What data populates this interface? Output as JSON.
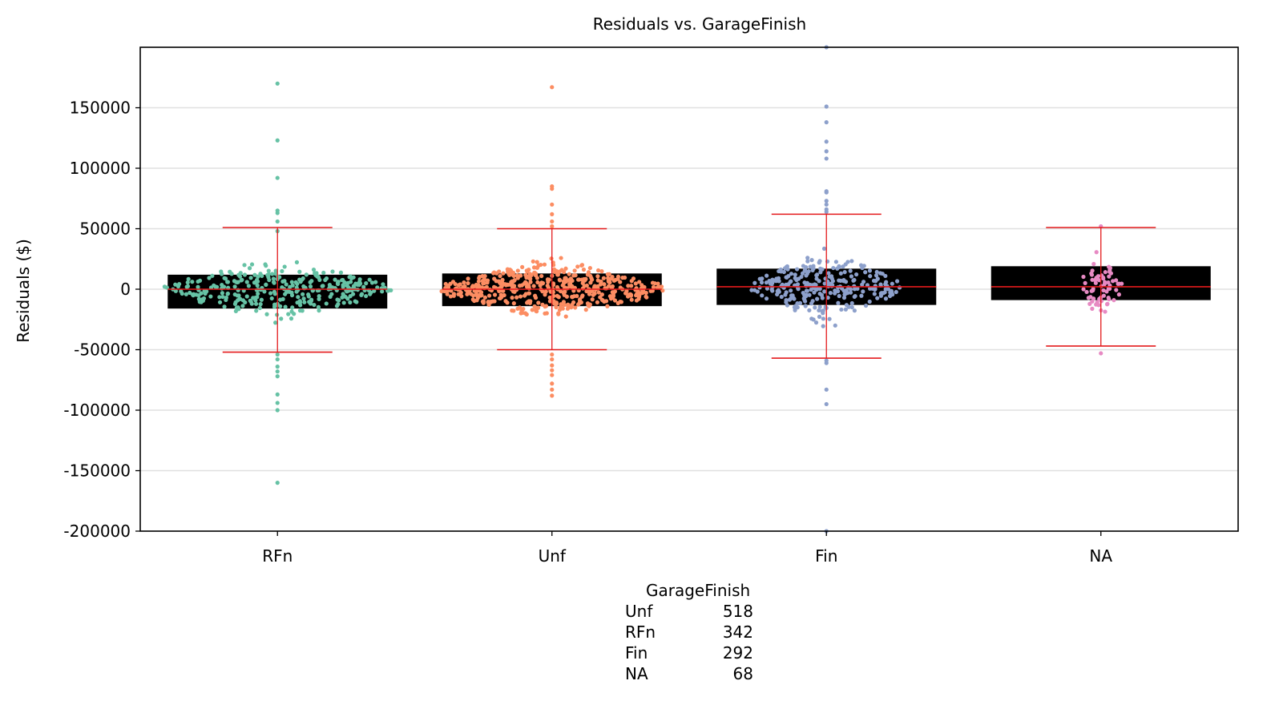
{
  "chart_data": {
    "type": "swarm-box",
    "title": "Residuals vs. GarageFinish",
    "xlabel": "",
    "ylabel": "Residuals ($)",
    "categories": [
      "RFn",
      "Unf",
      "Fin",
      "NA"
    ],
    "ylim": [
      -200000,
      200000
    ],
    "yticks": [
      150000,
      100000,
      50000,
      0,
      -50000,
      -100000,
      -150000,
      -200000
    ],
    "ytick_labels": [
      "150000",
      "100000",
      "50000",
      "0",
      "-50000",
      "-100000",
      "-150000",
      "-200000"
    ],
    "grid": true,
    "boxes": [
      {
        "category": "RFn",
        "q1": -16000,
        "median": 0,
        "q3": 12000,
        "whisker_low": -52000,
        "whisker_high": 51000,
        "color": "#66c2a5"
      },
      {
        "category": "Unf",
        "q1": -14000,
        "median": 0,
        "q3": 13000,
        "whisker_low": -50000,
        "whisker_high": 50000,
        "color": "#fc8d62"
      },
      {
        "category": "Fin",
        "q1": -13000,
        "median": 2000,
        "q3": 17000,
        "whisker_low": -57000,
        "whisker_high": 62000,
        "color": "#8da0cb"
      },
      {
        "category": "NA",
        "q1": -9000,
        "median": 2000,
        "q3": 19000,
        "whisker_low": -47000,
        "whisker_high": 51000,
        "color": "#e78ac3"
      }
    ],
    "outliers": [
      {
        "category": "RFn",
        "values": [
          170000,
          123000,
          92000,
          65000,
          63000,
          56000,
          48000,
          -54000,
          -58000,
          -64000,
          -68000,
          -72000,
          -87000,
          -94000,
          -100000,
          -160000
        ]
      },
      {
        "category": "Unf",
        "values": [
          167000,
          85000,
          83000,
          70000,
          62000,
          56000,
          52000,
          -54000,
          -58000,
          -63000,
          -67000,
          -71000,
          -78000,
          -83000,
          -88000
        ]
      },
      {
        "category": "Fin",
        "values": [
          200000,
          151000,
          138000,
          122000,
          114000,
          108000,
          81000,
          80000,
          73000,
          70000,
          66000,
          64000,
          -59000,
          -61000,
          -83000,
          -95000,
          -200000
        ]
      },
      {
        "category": "NA",
        "values": [
          52000,
          -53000
        ]
      }
    ],
    "swarm_half_width_fraction": [
      0.41,
      0.4,
      0.26,
      0.06
    ]
  },
  "counts_table": {
    "header": "GarageFinish",
    "rows": [
      {
        "label": "Unf",
        "count": "518"
      },
      {
        "label": "RFn",
        "count": "342"
      },
      {
        "label": "Fin",
        "count": "292"
      },
      {
        "label": "NA",
        "count": "68"
      }
    ]
  },
  "colors": {
    "box_fill": "#000000",
    "whisker": "#e41a1c",
    "grid": "#e0e0e0",
    "axis": "#000000"
  }
}
